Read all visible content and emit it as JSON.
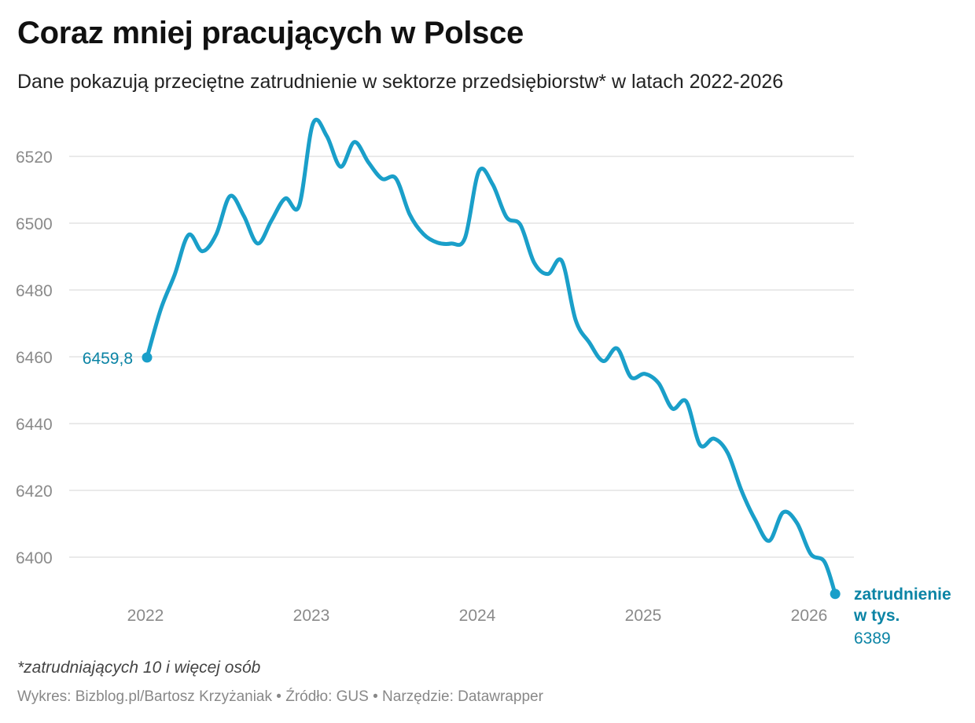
{
  "title": "Coraz mniej pracujących w Polsce",
  "subtitle": "Dane pokazują przeciętne zatrudnienie w sektorze przedsiębiorstw* w latach 2022-2026",
  "footnote": "*zatrudniających 10 i więcej osób",
  "credits": {
    "chart_by": "Wykres: Bizblog.pl/Bartosz Krzyżaniak",
    "source": "Źródło: GUS",
    "tool": "Narzędzie: Datawrapper",
    "separator": " • "
  },
  "colors": {
    "line": "#1a9fc9",
    "label": "#0b84a5",
    "grid": "#e3e3e3",
    "tick": "#8a8a8a"
  },
  "chart_data": {
    "type": "line",
    "title": "Coraz mniej pracujących w Polsce",
    "subtitle": "Dane pokazują przeciętne zatrudnienie w sektorze przedsiębiorstw* w latach 2022-2026",
    "xlabel": "",
    "ylabel": "",
    "ylim": [
      6389,
      6532
    ],
    "yticks": [
      6400,
      6420,
      6440,
      6460,
      6480,
      6500,
      6520
    ],
    "xticks": [
      "2022",
      "2023",
      "2024",
      "2025",
      "2026"
    ],
    "grid": true,
    "series": [
      {
        "name": "zatrudnienie w tys.",
        "x": [
          "2022-01",
          "2022-02",
          "2022-03",
          "2022-04",
          "2022-05",
          "2022-06",
          "2022-07",
          "2022-08",
          "2022-09",
          "2022-10",
          "2022-11",
          "2022-12",
          "2023-01",
          "2023-02",
          "2023-03",
          "2023-04",
          "2023-05",
          "2023-06",
          "2023-07",
          "2023-08",
          "2023-09",
          "2023-10",
          "2023-11",
          "2023-12",
          "2024-01",
          "2024-02",
          "2024-03",
          "2024-04",
          "2024-05",
          "2024-06",
          "2024-07",
          "2024-08",
          "2024-09",
          "2024-10",
          "2024-11",
          "2024-12",
          "2025-01",
          "2025-02",
          "2025-03",
          "2025-04",
          "2025-05",
          "2025-06",
          "2025-07",
          "2025-08",
          "2025-09",
          "2025-10",
          "2025-11",
          "2025-12",
          "2026-01",
          "2026-02"
        ],
        "y": [
          6459.8,
          6474.3,
          6484.6,
          6496.5,
          6491.6,
          6496.6,
          6508.1,
          6502.2,
          6493.9,
          6500.8,
          6507.4,
          6505.2,
          6529.8,
          6526.1,
          6516.9,
          6524.3,
          6518.3,
          6513.3,
          6513.4,
          6502.6,
          6496.7,
          6494.2,
          6493.9,
          6495.6,
          6515.5,
          6511.6,
          6501.8,
          6499.5,
          6488.2,
          6484.8,
          6488.7,
          6471.0,
          6464.2,
          6458.7,
          6462.5,
          6453.9,
          6454.9,
          6452.1,
          6444.5,
          6446.6,
          6433.6,
          6435.5,
          6431.2,
          6419.9,
          6411.1,
          6404.9,
          6413.4,
          6410.3,
          6401.0,
          6398.6
        ],
        "final": {
          "x": "2026-03",
          "y": 6389
        }
      }
    ],
    "labels": {
      "start_value": "6459,8",
      "end_value": "6389",
      "series_label_line1": "zatrudnienie",
      "series_label_line2": "w tys."
    }
  }
}
